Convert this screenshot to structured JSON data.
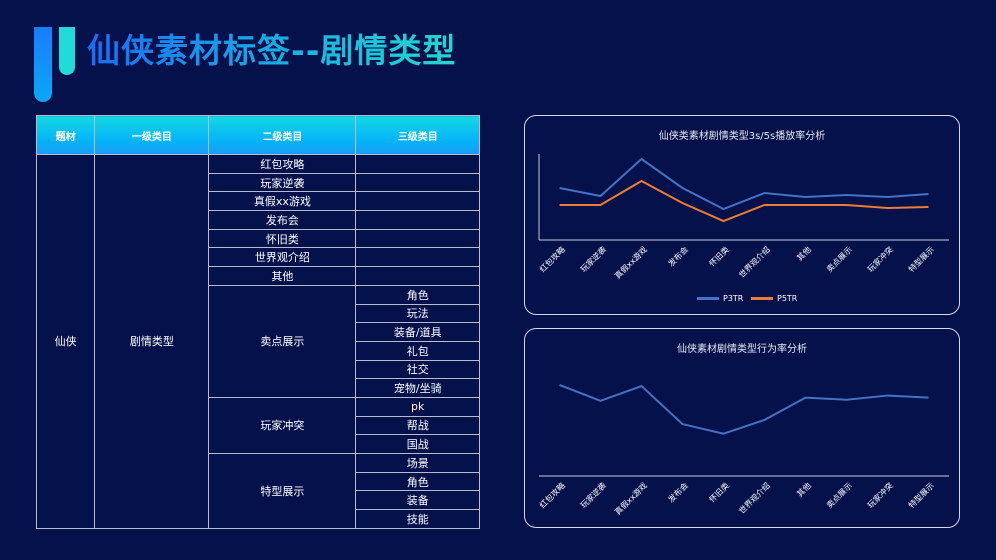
{
  "header": {
    "title": "仙侠素材标签--剧情类型"
  },
  "table": {
    "columns": [
      "题材",
      "一级类目",
      "二级类目",
      "三级类目"
    ],
    "subject": "仙侠",
    "level1": "剧情类型",
    "single_level2": [
      "红包攻略",
      "玩家逆袭",
      "真假xx游戏",
      "发布会",
      "怀旧类",
      "世界观介绍",
      "其他"
    ],
    "groups": [
      {
        "level2": "卖点展示",
        "level3": [
          "角色",
          "玩法",
          "装备/道具",
          "礼包",
          "社交",
          "宠物/坐骑"
        ]
      },
      {
        "level2": "玩家冲突",
        "level3": [
          "pk",
          "帮战",
          "国战"
        ]
      },
      {
        "level2": "特型展示",
        "level3": [
          "场景",
          "角色",
          "装备",
          "技能"
        ]
      }
    ]
  },
  "chart_data": [
    {
      "type": "line",
      "title": "仙侠类素材剧情类型3s/5s播放率分析",
      "categories": [
        "红包攻略",
        "玩家逆袭",
        "真假xx游戏",
        "发布会",
        "怀旧类",
        "世界观介绍",
        "其他",
        "卖点展示",
        "玩家冲突",
        "特型展示"
      ],
      "series": [
        {
          "name": "P3TR",
          "color": "#4472c4",
          "values": [
            52,
            44,
            81,
            52,
            31,
            47,
            43,
            45,
            43,
            46
          ]
        },
        {
          "name": "P5TR",
          "color": "#ed7d31",
          "values": [
            35,
            35,
            59,
            37,
            19,
            35,
            35,
            35,
            32,
            33
          ]
        }
      ],
      "ylim": [
        0,
        86
      ],
      "grid": false,
      "legend": "bottom"
    },
    {
      "type": "line",
      "title": "仙侠素材剧情类型行为率分析",
      "categories": [
        "红包攻略",
        "玩家逆袭",
        "真假xx游戏",
        "发布会",
        "怀旧类",
        "世界观介绍",
        "其他",
        "卖点展示",
        "玩家冲突",
        "特型展示"
      ],
      "series": [
        {
          "color": "#4472c4",
          "values": [
            86,
            71,
            85,
            49,
            40,
            53,
            74,
            72,
            76,
            74
          ]
        }
      ],
      "ylim": [
        0,
        120
      ],
      "grid": false
    }
  ]
}
